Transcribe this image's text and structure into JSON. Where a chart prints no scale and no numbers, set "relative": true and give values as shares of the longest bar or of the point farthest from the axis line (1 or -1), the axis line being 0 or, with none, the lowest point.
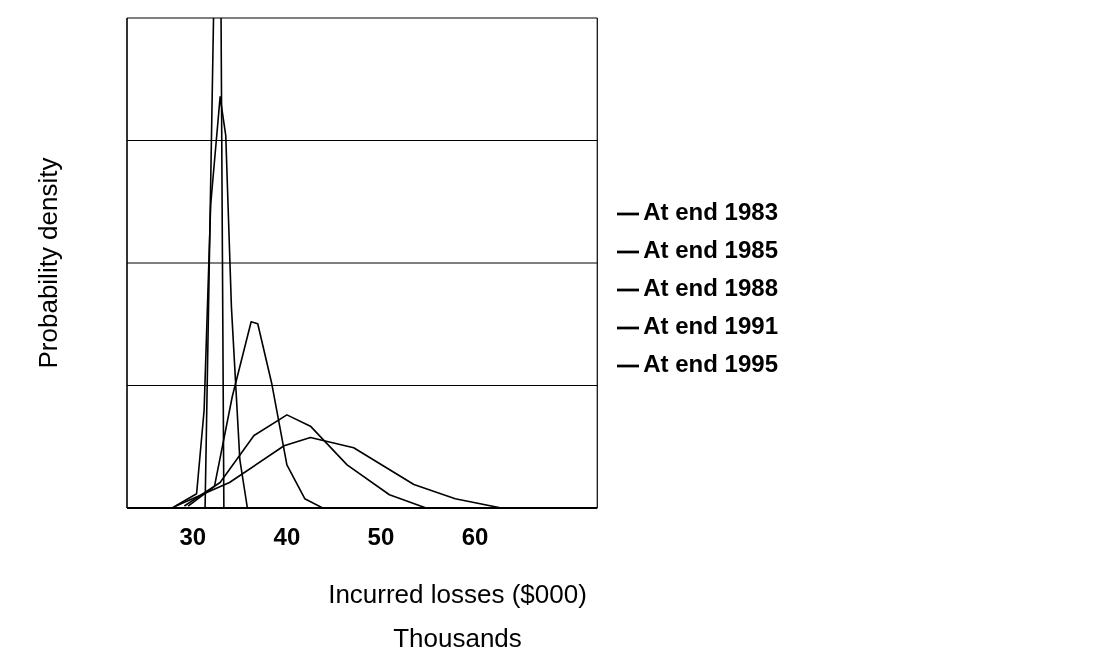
{
  "chart_data": {
    "type": "line",
    "xlabel": "Incurred losses ($000)",
    "ylabel": "Probability density",
    "annotations": [
      "Thousands"
    ],
    "relative": true,
    "xlim": [
      23,
      73
    ],
    "xticks": [
      30,
      40,
      50,
      60
    ],
    "grid": "y",
    "legend": "right",
    "marker": "none",
    "line_style": "solid",
    "series": [
      {
        "name": "At end 1983",
        "color": "#000000",
        "x": [
          28.2,
          33.9,
          39.7,
          42.5,
          47.1,
          53.5,
          57.9,
          62.8
        ],
        "values": [
          0.004,
          0.052,
          0.127,
          0.144,
          0.123,
          0.048,
          0.019,
          0
        ]
      },
      {
        "name": "At end 1985",
        "color": "#000000",
        "x": [
          29.1,
          32.9,
          36.5,
          40,
          42.5,
          46.4,
          50.9,
          54.8
        ],
        "values": [
          0.004,
          0.052,
          0.148,
          0.19,
          0.167,
          0.088,
          0.027,
          0
        ]
      },
      {
        "name": "At end 1988",
        "color": "#000000",
        "x": [
          29.5,
          32.3,
          34.2,
          36.2,
          36.9,
          38.4,
          40,
          41.9,
          43.8
        ],
        "values": [
          0.004,
          0.044,
          0.228,
          0.38,
          0.376,
          0.253,
          0.088,
          0.019,
          0
        ]
      },
      {
        "name": "At end 1991",
        "color": "#000000",
        "x": [
          27.8,
          30.4,
          31.2,
          31.9,
          32.9,
          33.5,
          34.1,
          35,
          35.8
        ],
        "values": [
          0,
          0.029,
          0.2,
          0.62,
          0.839,
          0.76,
          0.411,
          0.098,
          0
        ]
      },
      {
        "name": "At end 1995",
        "color": "#000000",
        "x": [
          30,
          31.3,
          32.2,
          32.6,
          33,
          33.3,
          35
        ],
        "values": [
          0,
          0,
          1,
          null,
          1,
          0,
          0
        ]
      }
    ]
  }
}
